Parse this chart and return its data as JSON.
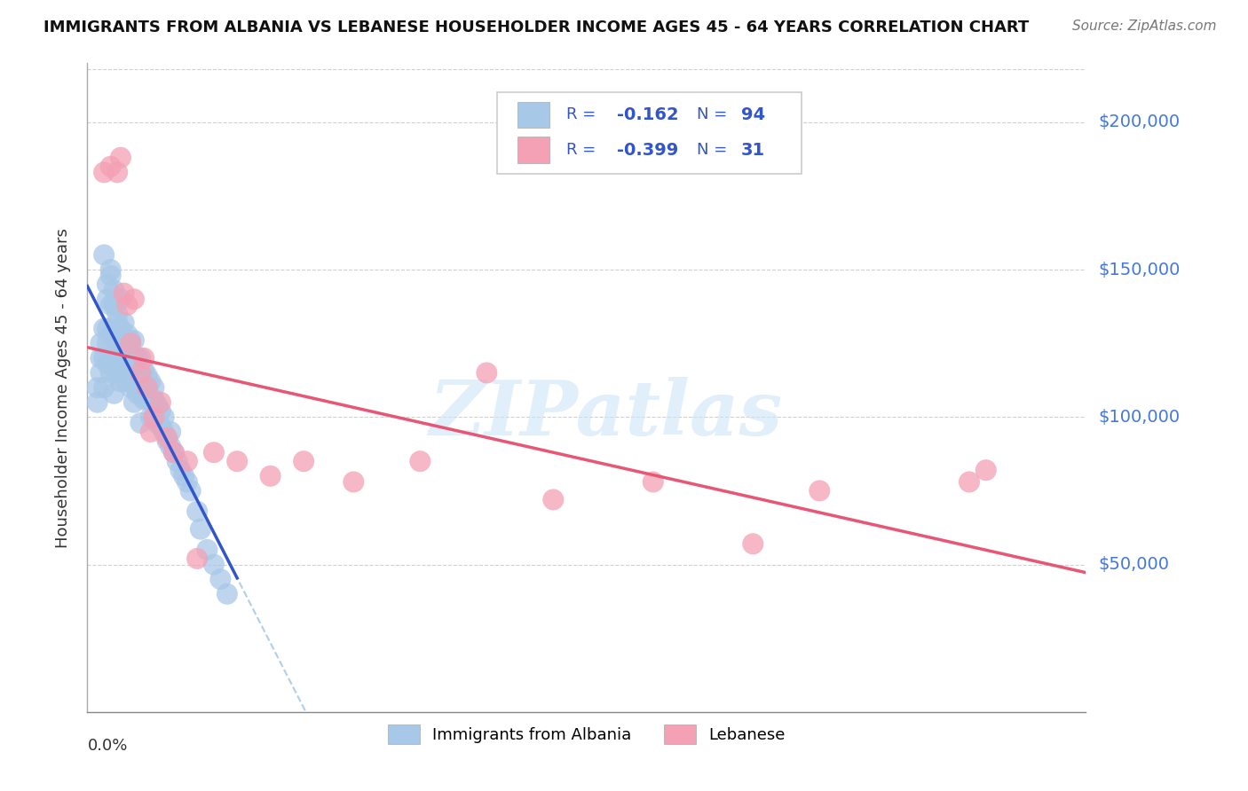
{
  "title": "IMMIGRANTS FROM ALBANIA VS LEBANESE HOUSEHOLDER INCOME AGES 45 - 64 YEARS CORRELATION CHART",
  "source": "Source: ZipAtlas.com",
  "ylabel": "Householder Income Ages 45 - 64 years",
  "xlim": [
    0.0,
    0.3
  ],
  "ylim": [
    0,
    220000
  ],
  "legend_r_albania": "-0.162",
  "legend_n_albania": "94",
  "legend_r_lebanese": "-0.399",
  "legend_n_lebanese": "31",
  "albania_color": "#a8c8e8",
  "lebanese_color": "#f4a0b5",
  "trend_albania_color": "#3355cc",
  "trend_lebanese_color": "#e85575",
  "trend_dashed_color": "#b0cfe8",
  "legend_text_color": "#3355cc",
  "ytick_color": "#4477dd",
  "watermark": "ZIPatlas",
  "albania_x": [
    0.003,
    0.004,
    0.004,
    0.005,
    0.005,
    0.005,
    0.006,
    0.006,
    0.006,
    0.006,
    0.007,
    0.007,
    0.007,
    0.007,
    0.008,
    0.008,
    0.008,
    0.008,
    0.009,
    0.009,
    0.009,
    0.009,
    0.01,
    0.01,
    0.01,
    0.01,
    0.01,
    0.011,
    0.011,
    0.011,
    0.011,
    0.012,
    0.012,
    0.012,
    0.012,
    0.013,
    0.013,
    0.013,
    0.013,
    0.014,
    0.014,
    0.014,
    0.014,
    0.015,
    0.015,
    0.015,
    0.016,
    0.016,
    0.016,
    0.017,
    0.017,
    0.017,
    0.018,
    0.018,
    0.018,
    0.019,
    0.019,
    0.019,
    0.02,
    0.02,
    0.02,
    0.021,
    0.021,
    0.022,
    0.022,
    0.023,
    0.023,
    0.024,
    0.025,
    0.025,
    0.026,
    0.027,
    0.028,
    0.029,
    0.03,
    0.031,
    0.033,
    0.034,
    0.036,
    0.038,
    0.04,
    0.042,
    0.003,
    0.004,
    0.005,
    0.006,
    0.007,
    0.008,
    0.009,
    0.01,
    0.011,
    0.012,
    0.014,
    0.016
  ],
  "albania_y": [
    105000,
    115000,
    125000,
    110000,
    120000,
    155000,
    125000,
    118000,
    130000,
    145000,
    115000,
    128000,
    138000,
    148000,
    108000,
    118000,
    128000,
    138000,
    115000,
    120000,
    125000,
    132000,
    112000,
    118000,
    124000,
    130000,
    140000,
    115000,
    120000,
    125000,
    132000,
    112000,
    118000,
    122000,
    128000,
    110000,
    115000,
    120000,
    126000,
    112000,
    116000,
    120000,
    126000,
    108000,
    114000,
    120000,
    108000,
    114000,
    120000,
    106000,
    110000,
    116000,
    106000,
    110000,
    114000,
    100000,
    106000,
    112000,
    100000,
    106000,
    110000,
    98000,
    104000,
    97000,
    102000,
    95000,
    100000,
    92000,
    90000,
    95000,
    88000,
    85000,
    82000,
    80000,
    78000,
    75000,
    68000,
    62000,
    55000,
    50000,
    45000,
    40000,
    110000,
    120000,
    130000,
    140000,
    150000,
    143000,
    135000,
    128000,
    122000,
    115000,
    105000,
    98000
  ],
  "lebanese_x": [
    0.005,
    0.007,
    0.009,
    0.01,
    0.011,
    0.012,
    0.013,
    0.014,
    0.016,
    0.017,
    0.018,
    0.019,
    0.02,
    0.022,
    0.024,
    0.026,
    0.03,
    0.033,
    0.038,
    0.045,
    0.055,
    0.065,
    0.08,
    0.1,
    0.12,
    0.14,
    0.17,
    0.2,
    0.22,
    0.265,
    0.27
  ],
  "lebanese_y": [
    183000,
    185000,
    183000,
    188000,
    142000,
    138000,
    125000,
    140000,
    115000,
    120000,
    110000,
    95000,
    100000,
    105000,
    93000,
    88000,
    85000,
    52000,
    88000,
    85000,
    80000,
    85000,
    78000,
    85000,
    115000,
    72000,
    78000,
    57000,
    75000,
    78000,
    82000
  ]
}
